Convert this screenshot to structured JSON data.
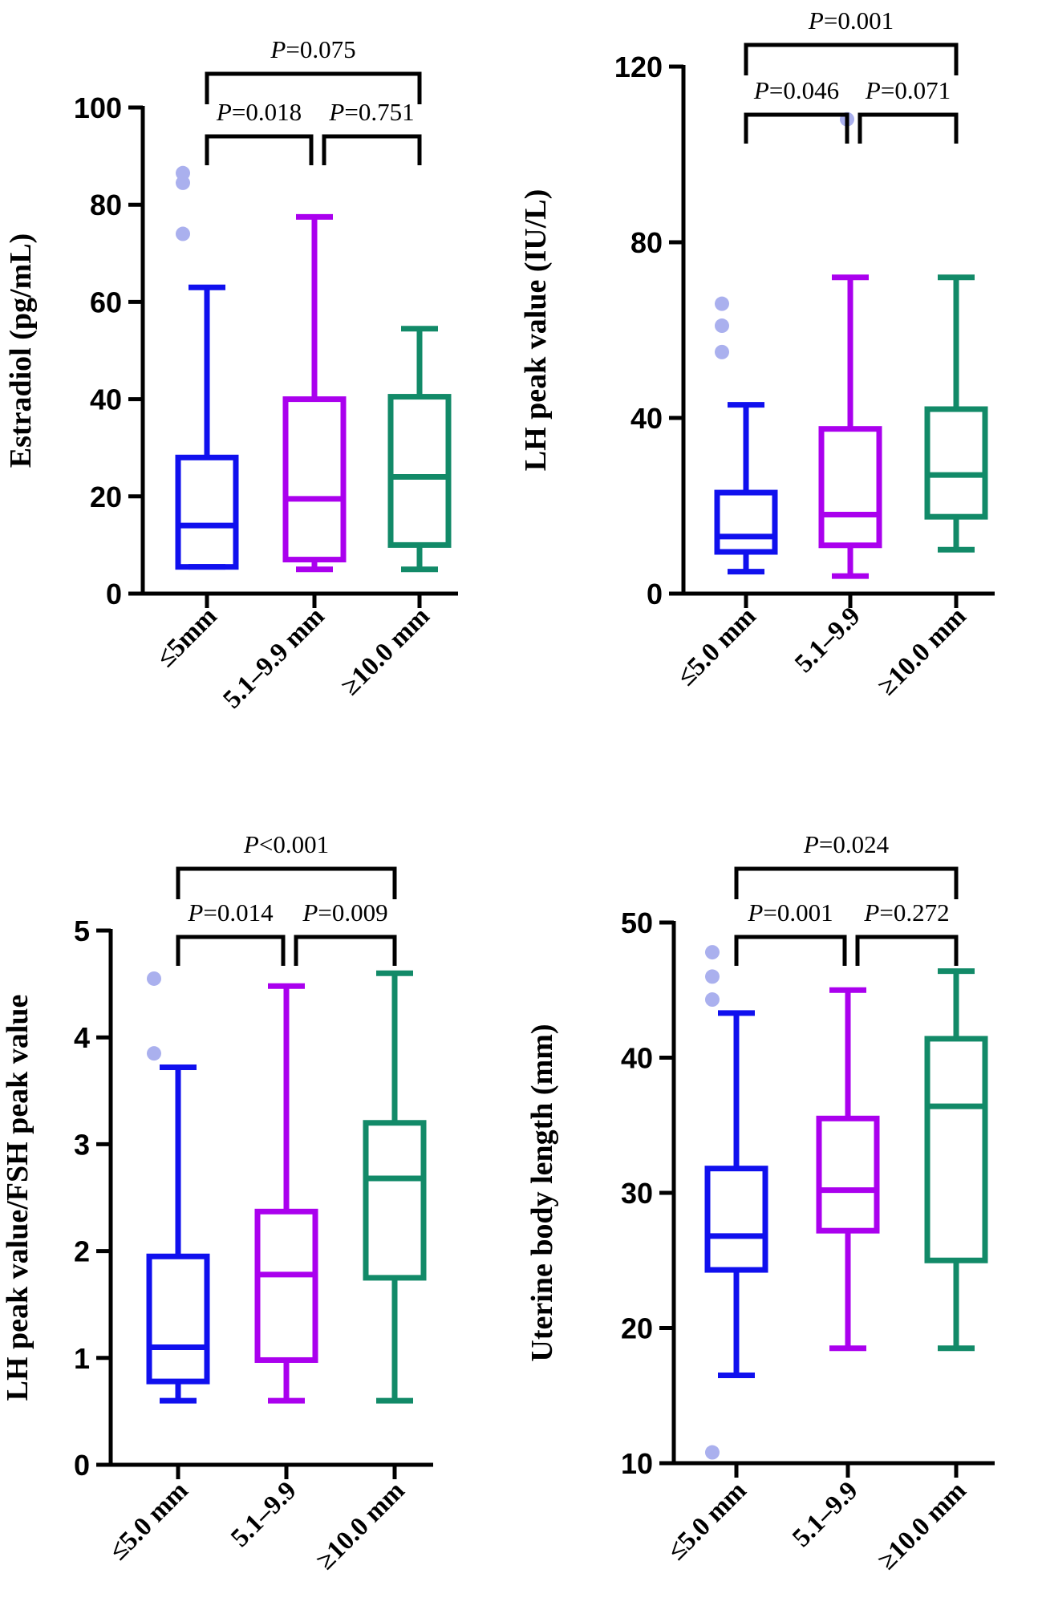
{
  "chart_data": [
    {
      "type": "box",
      "panel": "top-left",
      "ylabel": "Estradiol (pg/mL)",
      "ylim": [
        0,
        100
      ],
      "yticks": [
        "0",
        "20",
        "40",
        "60",
        "80",
        "100"
      ],
      "ytick_values": [
        0,
        20,
        40,
        60,
        80,
        100
      ],
      "categories": [
        "≤5mm",
        "5.1–9.9 mm",
        "≥10.0 mm"
      ],
      "colors": [
        "#1010ee",
        "#aa00ee",
        "#128a68"
      ],
      "boxes": [
        {
          "min": 5.5,
          "q1": 5.5,
          "median": 14,
          "q3": 28,
          "max": 63,
          "outliers": [
            86.5,
            84.5,
            74
          ]
        },
        {
          "min": 5,
          "q1": 7,
          "median": 19.5,
          "q3": 40,
          "max": 77.5,
          "outliers": []
        },
        {
          "min": 5,
          "q1": 10,
          "median": 24,
          "q3": 40.5,
          "max": 54.5,
          "outliers": []
        }
      ],
      "comparisons": [
        {
          "a": 0,
          "b": 2,
          "level": 2,
          "prefix": "P",
          "text": "=0.075"
        },
        {
          "a": 0,
          "b": 1,
          "level": 1,
          "prefix": "P",
          "text": "=0.018"
        },
        {
          "a": 1,
          "b": 2,
          "level": 1,
          "prefix": "P",
          "text": "=0.751"
        }
      ]
    },
    {
      "type": "box",
      "panel": "top-right",
      "ylabel": "LH peak value (IU/L)",
      "ylim": [
        0,
        120
      ],
      "yticks": [
        "0",
        "40",
        "80",
        "120"
      ],
      "ytick_values": [
        0,
        40,
        80,
        120
      ],
      "categories": [
        "≤5.0 mm",
        "5.1–9.9",
        "≥10.0 mm"
      ],
      "colors": [
        "#1010ee",
        "#aa00ee",
        "#128a68"
      ],
      "boxes": [
        {
          "min": 5,
          "q1": 9.5,
          "median": 13,
          "q3": 23,
          "max": 43,
          "outliers": [
            66,
            61,
            55
          ]
        },
        {
          "min": 4,
          "q1": 11,
          "median": 18,
          "q3": 37.5,
          "max": 72,
          "outliers": [
            108
          ]
        },
        {
          "min": 10,
          "q1": 17.5,
          "median": 27,
          "q3": 42,
          "max": 72,
          "outliers": []
        }
      ],
      "comparisons": [
        {
          "a": 0,
          "b": 2,
          "level": 2,
          "prefix": "P",
          "text": "=0.001"
        },
        {
          "a": 0,
          "b": 1,
          "level": 1,
          "prefix": "P",
          "text": "=0.046"
        },
        {
          "a": 1,
          "b": 2,
          "level": 1,
          "prefix": "P",
          "text": "=0.071"
        }
      ]
    },
    {
      "type": "box",
      "panel": "bottom-left",
      "ylabel": "LH peak value/FSH peak value",
      "ylim": [
        0,
        5
      ],
      "yticks": [
        "0",
        "1",
        "2",
        "3",
        "4",
        "5"
      ],
      "ytick_values": [
        0,
        1,
        2,
        3,
        4,
        5
      ],
      "categories": [
        "≤5.0 mm",
        "5.1–9.9",
        "≥10.0 mm"
      ],
      "colors": [
        "#1010ee",
        "#aa00ee",
        "#128a68"
      ],
      "boxes": [
        {
          "min": 0.6,
          "q1": 0.78,
          "median": 1.1,
          "q3": 1.95,
          "max": 3.72,
          "outliers": [
            4.55,
            3.85
          ]
        },
        {
          "min": 0.6,
          "q1": 0.98,
          "median": 1.78,
          "q3": 2.37,
          "max": 4.48,
          "outliers": []
        },
        {
          "min": 0.6,
          "q1": 1.75,
          "median": 2.68,
          "q3": 3.2,
          "max": 4.6,
          "outliers": []
        }
      ],
      "comparisons": [
        {
          "a": 0,
          "b": 2,
          "level": 2,
          "prefix": "P",
          "text": "<0.001"
        },
        {
          "a": 0,
          "b": 1,
          "level": 1,
          "prefix": "P",
          "text": "=0.014"
        },
        {
          "a": 1,
          "b": 2,
          "level": 1,
          "prefix": "P",
          "text": "=0.009"
        }
      ]
    },
    {
      "type": "box",
      "panel": "bottom-right",
      "ylabel": "Uterine body length (mm)",
      "ylim": [
        10,
        50
      ],
      "yticks": [
        "10",
        "20",
        "30",
        "40",
        "50"
      ],
      "ytick_values": [
        10,
        20,
        30,
        40,
        50
      ],
      "categories": [
        "≤5.0 mm",
        "5.1–9.9",
        "≥10.0 mm"
      ],
      "colors": [
        "#1010ee",
        "#aa00ee",
        "#128a68"
      ],
      "boxes": [
        {
          "min": 16.5,
          "q1": 24.3,
          "median": 26.8,
          "q3": 31.8,
          "max": 43.3,
          "outliers": [
            47.8,
            46,
            44.3,
            10.8
          ]
        },
        {
          "min": 18.5,
          "q1": 27.2,
          "median": 30.2,
          "q3": 35.5,
          "max": 45,
          "outliers": []
        },
        {
          "min": 18.5,
          "q1": 25,
          "median": 36.4,
          "q3": 41.4,
          "max": 46.4,
          "outliers": []
        }
      ],
      "comparisons": [
        {
          "a": 0,
          "b": 2,
          "level": 2,
          "prefix": "P",
          "text": "=0.024"
        },
        {
          "a": 0,
          "b": 1,
          "level": 1,
          "prefix": "P",
          "text": "=0.001"
        },
        {
          "a": 1,
          "b": 2,
          "level": 1,
          "prefix": "P",
          "text": "=0.272"
        }
      ]
    }
  ]
}
